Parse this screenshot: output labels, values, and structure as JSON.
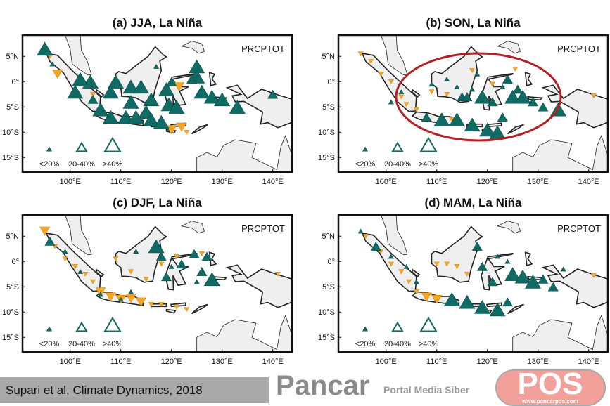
{
  "colors": {
    "wetter": "#0f6b63",
    "drier": "#f5a623",
    "land": "#efefef",
    "highlight": "#b22222"
  },
  "panel_label": "PRCPTOT",
  "axes": {
    "x_ticks": [
      {
        "lon": 100,
        "label": "100°E"
      },
      {
        "lon": 110,
        "label": "110°E"
      },
      {
        "lon": 120,
        "label": "120°E"
      },
      {
        "lon": 130,
        "label": "130°E"
      },
      {
        "lon": 140,
        "label": "140°E"
      }
    ],
    "y_ticks": [
      {
        "lat": 5,
        "label": "5°N"
      },
      {
        "lat": 0,
        "label": "0°"
      },
      {
        "lat": -5,
        "label": "5°S"
      },
      {
        "lat": -10,
        "label": "10°S"
      },
      {
        "lat": -15,
        "label": "15°S"
      }
    ]
  },
  "legend": [
    {
      "size": 1,
      "label": "<20%"
    },
    {
      "size": 2,
      "label": "20-40%"
    },
    {
      "size": 3,
      "label": ">40%"
    }
  ],
  "panels": [
    {
      "title": "(a) JJA, La Niña",
      "up": [
        [
          95,
          6.5,
          3
        ],
        [
          102,
          0.5,
          3
        ],
        [
          104,
          0,
          3
        ],
        [
          101,
          -2,
          3
        ],
        [
          104.5,
          -3.5,
          2
        ],
        [
          109,
          0,
          3
        ],
        [
          108,
          -2,
          3
        ],
        [
          112,
          -1,
          3
        ],
        [
          114,
          -1,
          3
        ],
        [
          112,
          -4,
          3
        ],
        [
          116,
          -3.5,
          3
        ],
        [
          115,
          -6,
          3
        ],
        [
          106,
          -5.5,
          3
        ],
        [
          108,
          -7,
          3
        ],
        [
          111,
          -7,
          3
        ],
        [
          113,
          -7,
          3
        ],
        [
          116,
          -7.5,
          3
        ],
        [
          118,
          -8,
          3
        ],
        [
          119,
          -1.5,
          3
        ],
        [
          120,
          0,
          2
        ],
        [
          119.5,
          -4.5,
          3
        ],
        [
          121,
          -5,
          3
        ],
        [
          125,
          3,
          3
        ],
        [
          125,
          1,
          3
        ],
        [
          126,
          -2,
          3
        ],
        [
          128,
          -3,
          3
        ],
        [
          130,
          -3.5,
          3
        ],
        [
          133,
          -5,
          3
        ],
        [
          140,
          -2.5,
          2
        ],
        [
          117,
          3,
          1
        ],
        [
          124,
          0.5,
          2
        ],
        [
          96.5,
          3.5,
          1
        ]
      ],
      "down": [
        [
          96,
          5,
          1
        ],
        [
          97.5,
          1.5,
          2
        ],
        [
          104.5,
          -2.5,
          1
        ],
        [
          120,
          -9.5,
          2
        ],
        [
          122,
          -9,
          2
        ],
        [
          123,
          -10,
          1
        ],
        [
          121.5,
          -1,
          2
        ]
      ]
    },
    {
      "title": "(b) SON, La Niña",
      "highlighted": true,
      "up": [
        [
          101,
          -4,
          1
        ],
        [
          103,
          -2,
          1
        ],
        [
          109,
          -0.5,
          1
        ],
        [
          112,
          0.5,
          1
        ],
        [
          114,
          -1,
          1
        ],
        [
          115,
          -3,
          2
        ],
        [
          117,
          -1.5,
          1
        ],
        [
          118,
          1.5,
          1
        ],
        [
          119,
          -3,
          3
        ],
        [
          121,
          -4,
          2
        ],
        [
          123,
          -1,
          1
        ],
        [
          125,
          -3,
          3
        ],
        [
          127,
          -3,
          3
        ],
        [
          129,
          -4,
          2
        ],
        [
          131,
          -5,
          2
        ],
        [
          134,
          -5.5,
          3
        ],
        [
          108,
          -7,
          2
        ],
        [
          111,
          -7.5,
          3
        ],
        [
          114,
          -7.5,
          3
        ],
        [
          117,
          -8.5,
          3
        ],
        [
          120,
          -9.5,
          3
        ],
        [
          122,
          -10,
          3
        ],
        [
          123,
          -7,
          2
        ],
        [
          124,
          0.5,
          2
        ],
        [
          126,
          -1.5,
          2
        ],
        [
          116,
          -3,
          2
        ]
      ],
      "down": [
        [
          95,
          5.5,
          1
        ],
        [
          97,
          4,
          1
        ],
        [
          99,
          1.5,
          1
        ],
        [
          101,
          0,
          1
        ],
        [
          103,
          -3,
          1
        ],
        [
          104,
          -4.5,
          1
        ],
        [
          106,
          -5.5,
          1
        ],
        [
          112,
          -2.5,
          1
        ],
        [
          113,
          -7.5,
          1
        ],
        [
          117,
          2.2,
          1
        ],
        [
          121,
          -0.5,
          1
        ],
        [
          125.5,
          2.5,
          1
        ],
        [
          141,
          -2.8,
          1
        ],
        [
          109,
          -2,
          1
        ]
      ]
    },
    {
      "title": "(c) DJF, La Niña",
      "up": [
        [
          96,
          4,
          2
        ],
        [
          99,
          2,
          1
        ],
        [
          102,
          -2,
          1
        ],
        [
          106,
          -6.5,
          1
        ],
        [
          112,
          -6,
          1
        ],
        [
          117,
          3,
          3
        ],
        [
          118,
          1,
          2
        ],
        [
          119,
          -3,
          2
        ],
        [
          120,
          -1,
          1
        ],
        [
          122,
          -0.5,
          2
        ],
        [
          124.5,
          1.5,
          2
        ],
        [
          126,
          -2,
          2
        ],
        [
          127,
          1,
          2
        ],
        [
          128,
          -3.5,
          3
        ],
        [
          125,
          -4,
          1
        ],
        [
          113,
          2,
          1
        ],
        [
          110,
          -7.5,
          1
        ]
      ],
      "down": [
        [
          95,
          6,
          2
        ],
        [
          97,
          3,
          1
        ],
        [
          99,
          0.5,
          1
        ],
        [
          101,
          -1,
          1
        ],
        [
          103,
          -2.5,
          1
        ],
        [
          104.5,
          -4,
          1
        ],
        [
          106,
          -6,
          2
        ],
        [
          108,
          -7,
          2
        ],
        [
          110,
          -7.5,
          2
        ],
        [
          112,
          -7.3,
          2
        ],
        [
          114,
          -8,
          2
        ],
        [
          116,
          -8.5,
          1
        ],
        [
          118,
          -8.5,
          1
        ],
        [
          121,
          -9,
          1
        ],
        [
          123,
          -9.5,
          1
        ],
        [
          115,
          -3.5,
          1
        ],
        [
          112,
          -2,
          1
        ],
        [
          118,
          -0.5,
          1
        ],
        [
          109,
          0.5,
          1
        ],
        [
          121,
          1,
          1
        ],
        [
          126,
          1.5,
          1
        ],
        [
          141,
          -2.5,
          1
        ]
      ]
    },
    {
      "title": "(d) MAM, La Niña",
      "up": [
        [
          95,
          6,
          1
        ],
        [
          98,
          3,
          2
        ],
        [
          101,
          1,
          1
        ],
        [
          104,
          -1,
          1
        ],
        [
          106,
          -4,
          1
        ],
        [
          118,
          3,
          2
        ],
        [
          119,
          -1,
          2
        ],
        [
          122,
          1,
          1
        ],
        [
          124,
          0,
          1
        ],
        [
          125,
          -2.5,
          3
        ],
        [
          127,
          -3,
          3
        ],
        [
          129,
          -4,
          3
        ],
        [
          131,
          -3.5,
          2
        ],
        [
          133,
          -5,
          2
        ],
        [
          135,
          -1.5,
          1
        ],
        [
          113,
          -7.5,
          3
        ],
        [
          116,
          -8,
          3
        ],
        [
          119,
          -9,
          3
        ],
        [
          122,
          -9.5,
          3
        ],
        [
          124,
          -8,
          2
        ],
        [
          121,
          -4,
          2
        ]
      ],
      "down": [
        [
          96,
          5,
          1
        ],
        [
          99,
          2,
          1
        ],
        [
          101,
          -0.5,
          1
        ],
        [
          103,
          -2,
          1
        ],
        [
          104.5,
          -4,
          1
        ],
        [
          106,
          -6,
          1
        ],
        [
          108,
          -7,
          2
        ],
        [
          110,
          -7.5,
          2
        ],
        [
          112,
          -0.5,
          1
        ],
        [
          114,
          -1,
          1
        ],
        [
          116,
          -2.5,
          1
        ],
        [
          110,
          -0.5,
          1
        ],
        [
          141,
          -2.8,
          1
        ]
      ]
    }
  ],
  "citation": "Supari et al, Climate Dynamics, 2018",
  "watermark": {
    "brand_left": "Pancar",
    "brand_right": "POS",
    "tagline": "Portal Media Siber",
    "url": "www.pancarpos.com"
  }
}
